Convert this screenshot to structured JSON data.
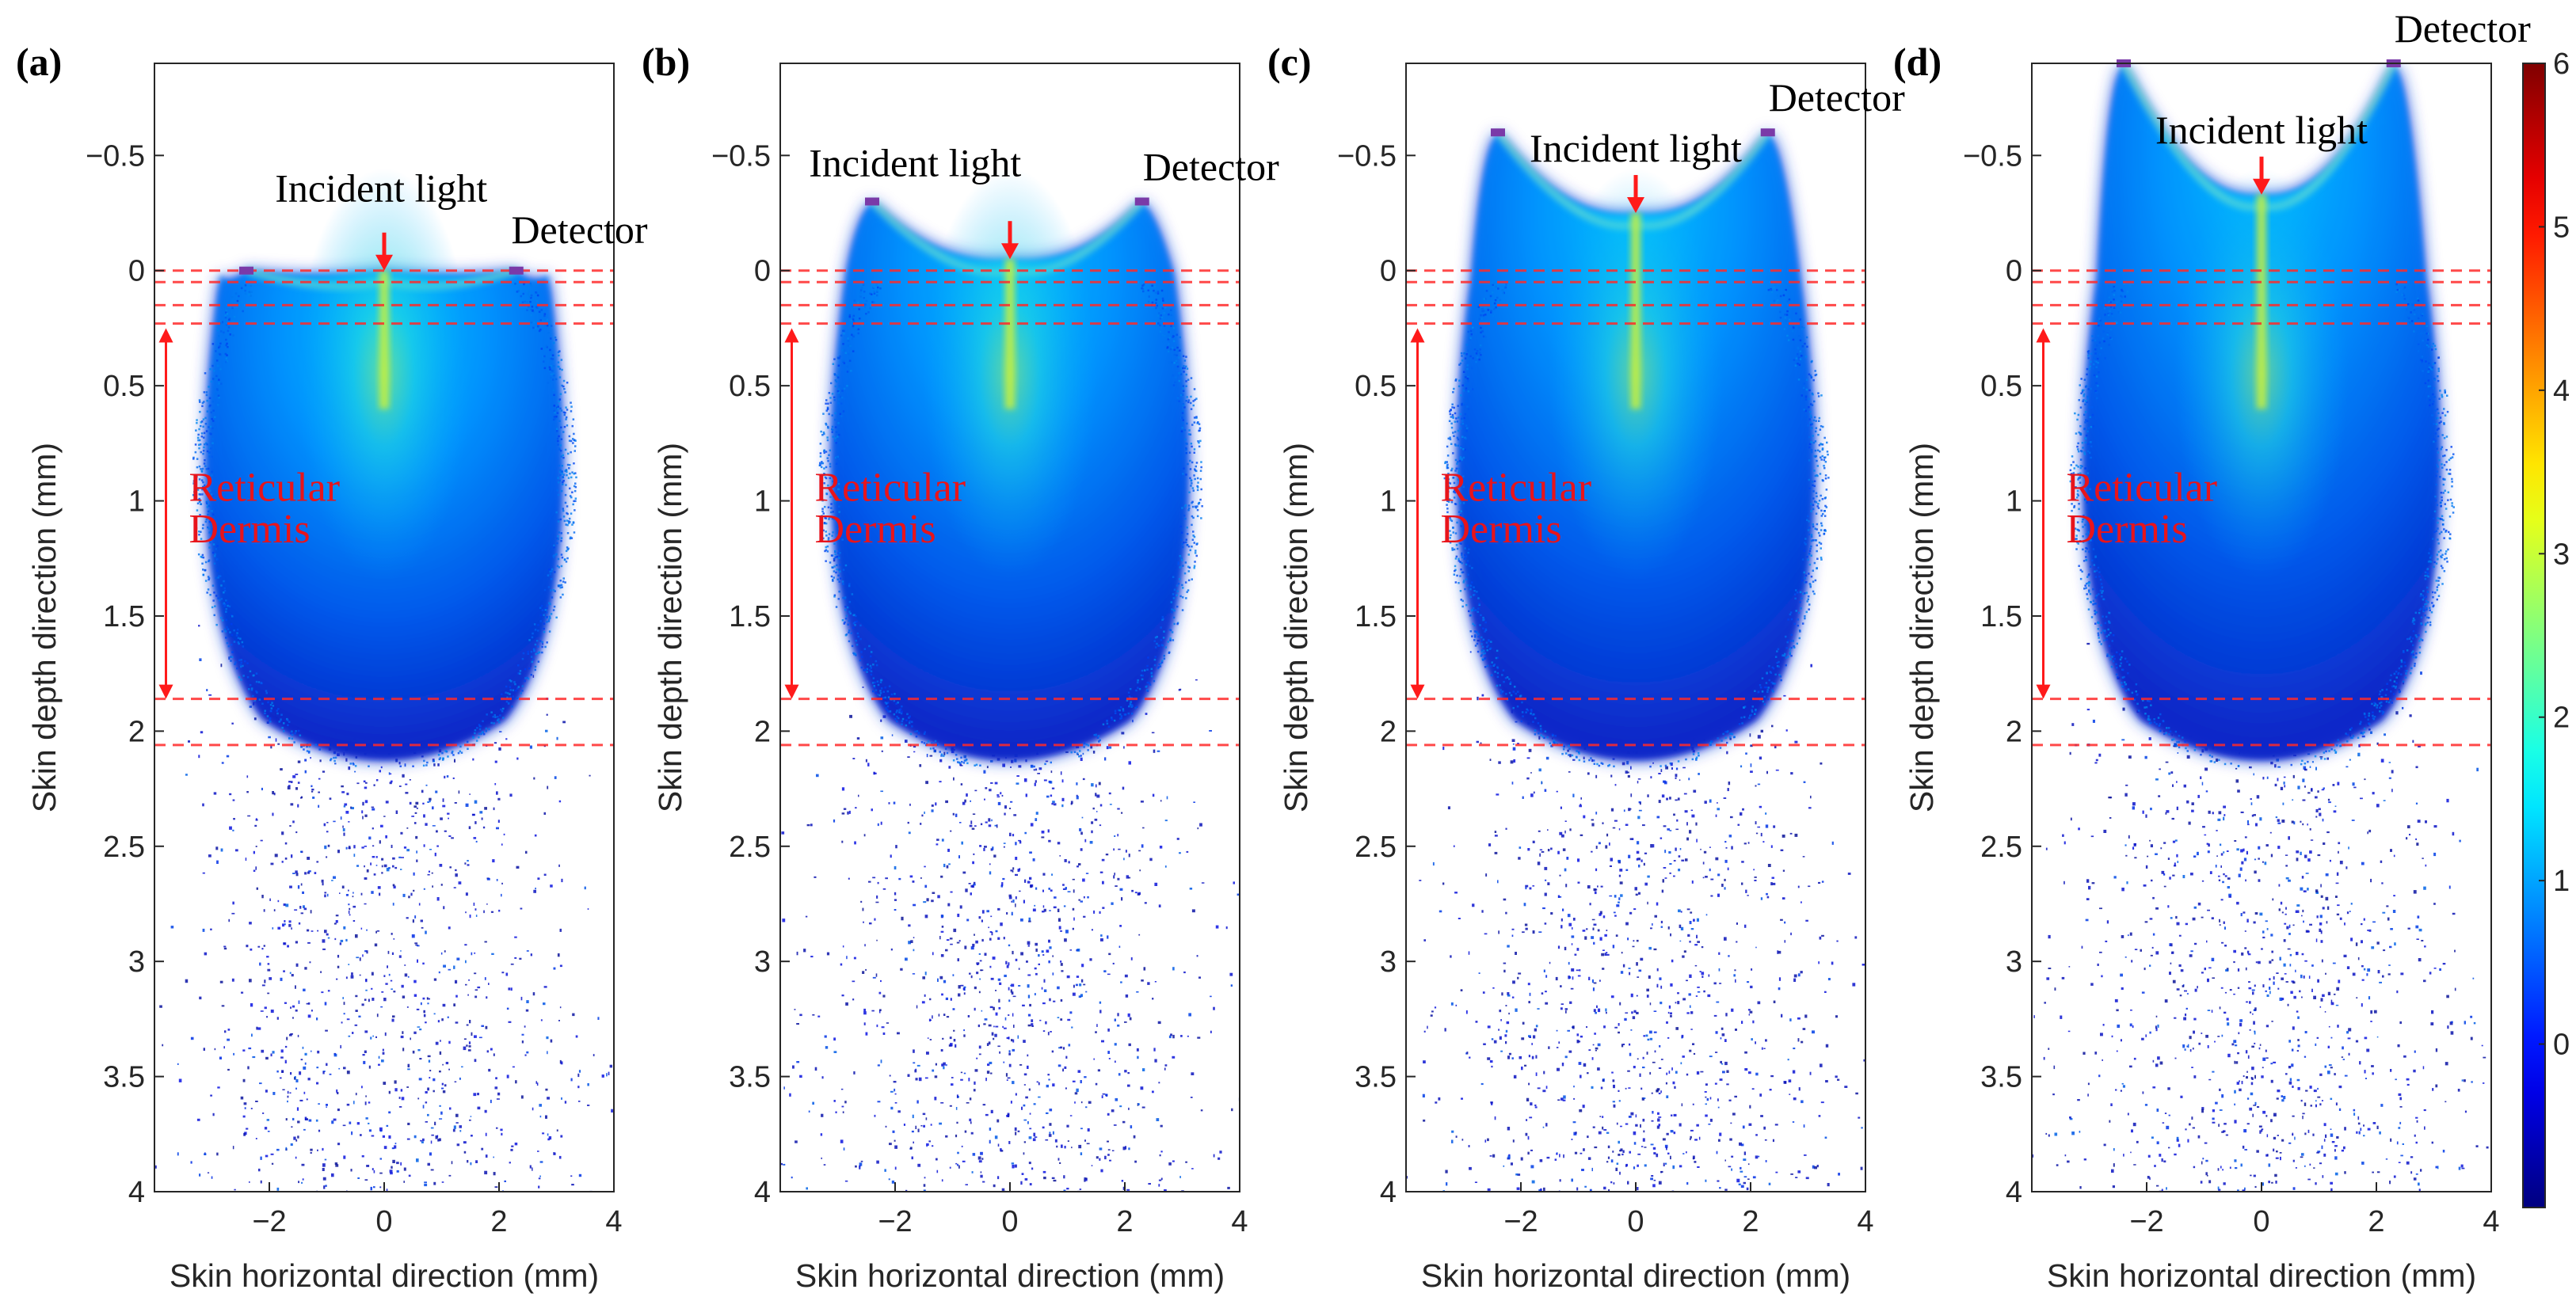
{
  "chart_data": {
    "colorbar": {
      "ticks": [
        "0",
        "1",
        "2",
        "3",
        "4",
        "5",
        "6"
      ],
      "range": [
        -1,
        6
      ],
      "colormap": "jet"
    },
    "panels": [
      {
        "label": "(a)",
        "type": "heatmap",
        "xlabel": "Skin horizontal direction (mm)",
        "ylabel": "Skin depth direction (mm)",
        "xlim": [
          -4,
          4
        ],
        "ylim": [
          -0.9,
          4
        ],
        "xticks": [
          "-2",
          "0",
          "2",
          "4"
        ],
        "yticks": [
          "-0.5",
          "0",
          "0.5",
          "1",
          "1.5",
          "2",
          "2.5",
          "3",
          "3.5",
          "4"
        ],
        "source": {
          "x": -2.4,
          "depth": 0.0
        },
        "detector": {
          "x": 2.3,
          "depth": 0.0
        },
        "incident": {
          "x": 0,
          "depth": 0.0
        },
        "annotations": {
          "incident_light": "Incident light",
          "detector": "Detector",
          "layer_line1": "Reticular",
          "layer_line2": "Dermis"
        },
        "layer_boundaries": [
          0.0,
          0.05,
          0.15,
          0.23,
          1.86,
          2.06
        ],
        "dermis_range": [
          0.25,
          1.86
        ]
      },
      {
        "label": "(b)",
        "type": "heatmap",
        "xlabel": "Skin horizontal direction (mm)",
        "ylabel": "Skin depth direction (mm)",
        "xlim": [
          -4,
          4
        ],
        "ylim": [
          -0.9,
          4
        ],
        "xticks": [
          "-2",
          "0",
          "2",
          "4"
        ],
        "yticks": [
          "-0.5",
          "0",
          "0.5",
          "1",
          "1.5",
          "2",
          "2.5",
          "3",
          "3.5",
          "4"
        ],
        "source": {
          "x": -2.4,
          "depth": -0.3
        },
        "detector": {
          "x": 2.3,
          "depth": -0.3
        },
        "incident": {
          "x": 0,
          "depth": -0.05
        },
        "annotations": {
          "incident_light": "Incident light",
          "detector": "Detector",
          "layer_line1": "Reticular",
          "layer_line2": "Dermis"
        },
        "layer_boundaries": [
          0.0,
          0.05,
          0.15,
          0.23,
          1.86,
          2.06
        ],
        "dermis_range": [
          0.25,
          1.86
        ]
      },
      {
        "label": "(c)",
        "type": "heatmap",
        "xlabel": "Skin horizontal direction (mm)",
        "ylabel": "Skin depth direction (mm)",
        "xlim": [
          -4,
          4
        ],
        "ylim": [
          -0.9,
          4
        ],
        "xticks": [
          "-2",
          "0",
          "2",
          "4"
        ],
        "yticks": [
          "-0.5",
          "0",
          "0.5",
          "1",
          "1.5",
          "2",
          "2.5",
          "3",
          "3.5",
          "4"
        ],
        "source": {
          "x": -2.4,
          "depth": -0.6
        },
        "detector": {
          "x": 2.3,
          "depth": -0.6
        },
        "incident": {
          "x": 0,
          "depth": -0.25
        },
        "annotations": {
          "incident_light": "Incident light",
          "detector": "Detector",
          "layer_line1": "Reticular",
          "layer_line2": "Dermis"
        },
        "layer_boundaries": [
          0.0,
          0.05,
          0.15,
          0.23,
          1.86,
          2.06
        ],
        "dermis_range": [
          0.25,
          1.86
        ]
      },
      {
        "label": "(d)",
        "type": "heatmap",
        "xlabel": "Skin horizontal direction (mm)",
        "ylabel": "Skin depth direction (mm)",
        "xlim": [
          -4,
          4
        ],
        "ylim": [
          -0.9,
          4
        ],
        "xticks": [
          "-2",
          "0",
          "2",
          "4"
        ],
        "yticks": [
          "-0.5",
          "0",
          "0.5",
          "1",
          "1.5",
          "2",
          "2.5",
          "3",
          "3.5",
          "4"
        ],
        "source": {
          "x": -2.4,
          "depth": -0.9
        },
        "detector": {
          "x": 2.3,
          "depth": -0.9
        },
        "incident": {
          "x": 0,
          "depth": -0.33
        },
        "annotations": {
          "incident_light": "Incident light",
          "detector": "Detector",
          "layer_line1": "Reticular",
          "layer_line2": "Dermis"
        },
        "layer_boundaries": [
          0.0,
          0.05,
          0.15,
          0.23,
          1.86,
          2.06
        ],
        "dermis_range": [
          0.25,
          1.86
        ]
      }
    ]
  }
}
